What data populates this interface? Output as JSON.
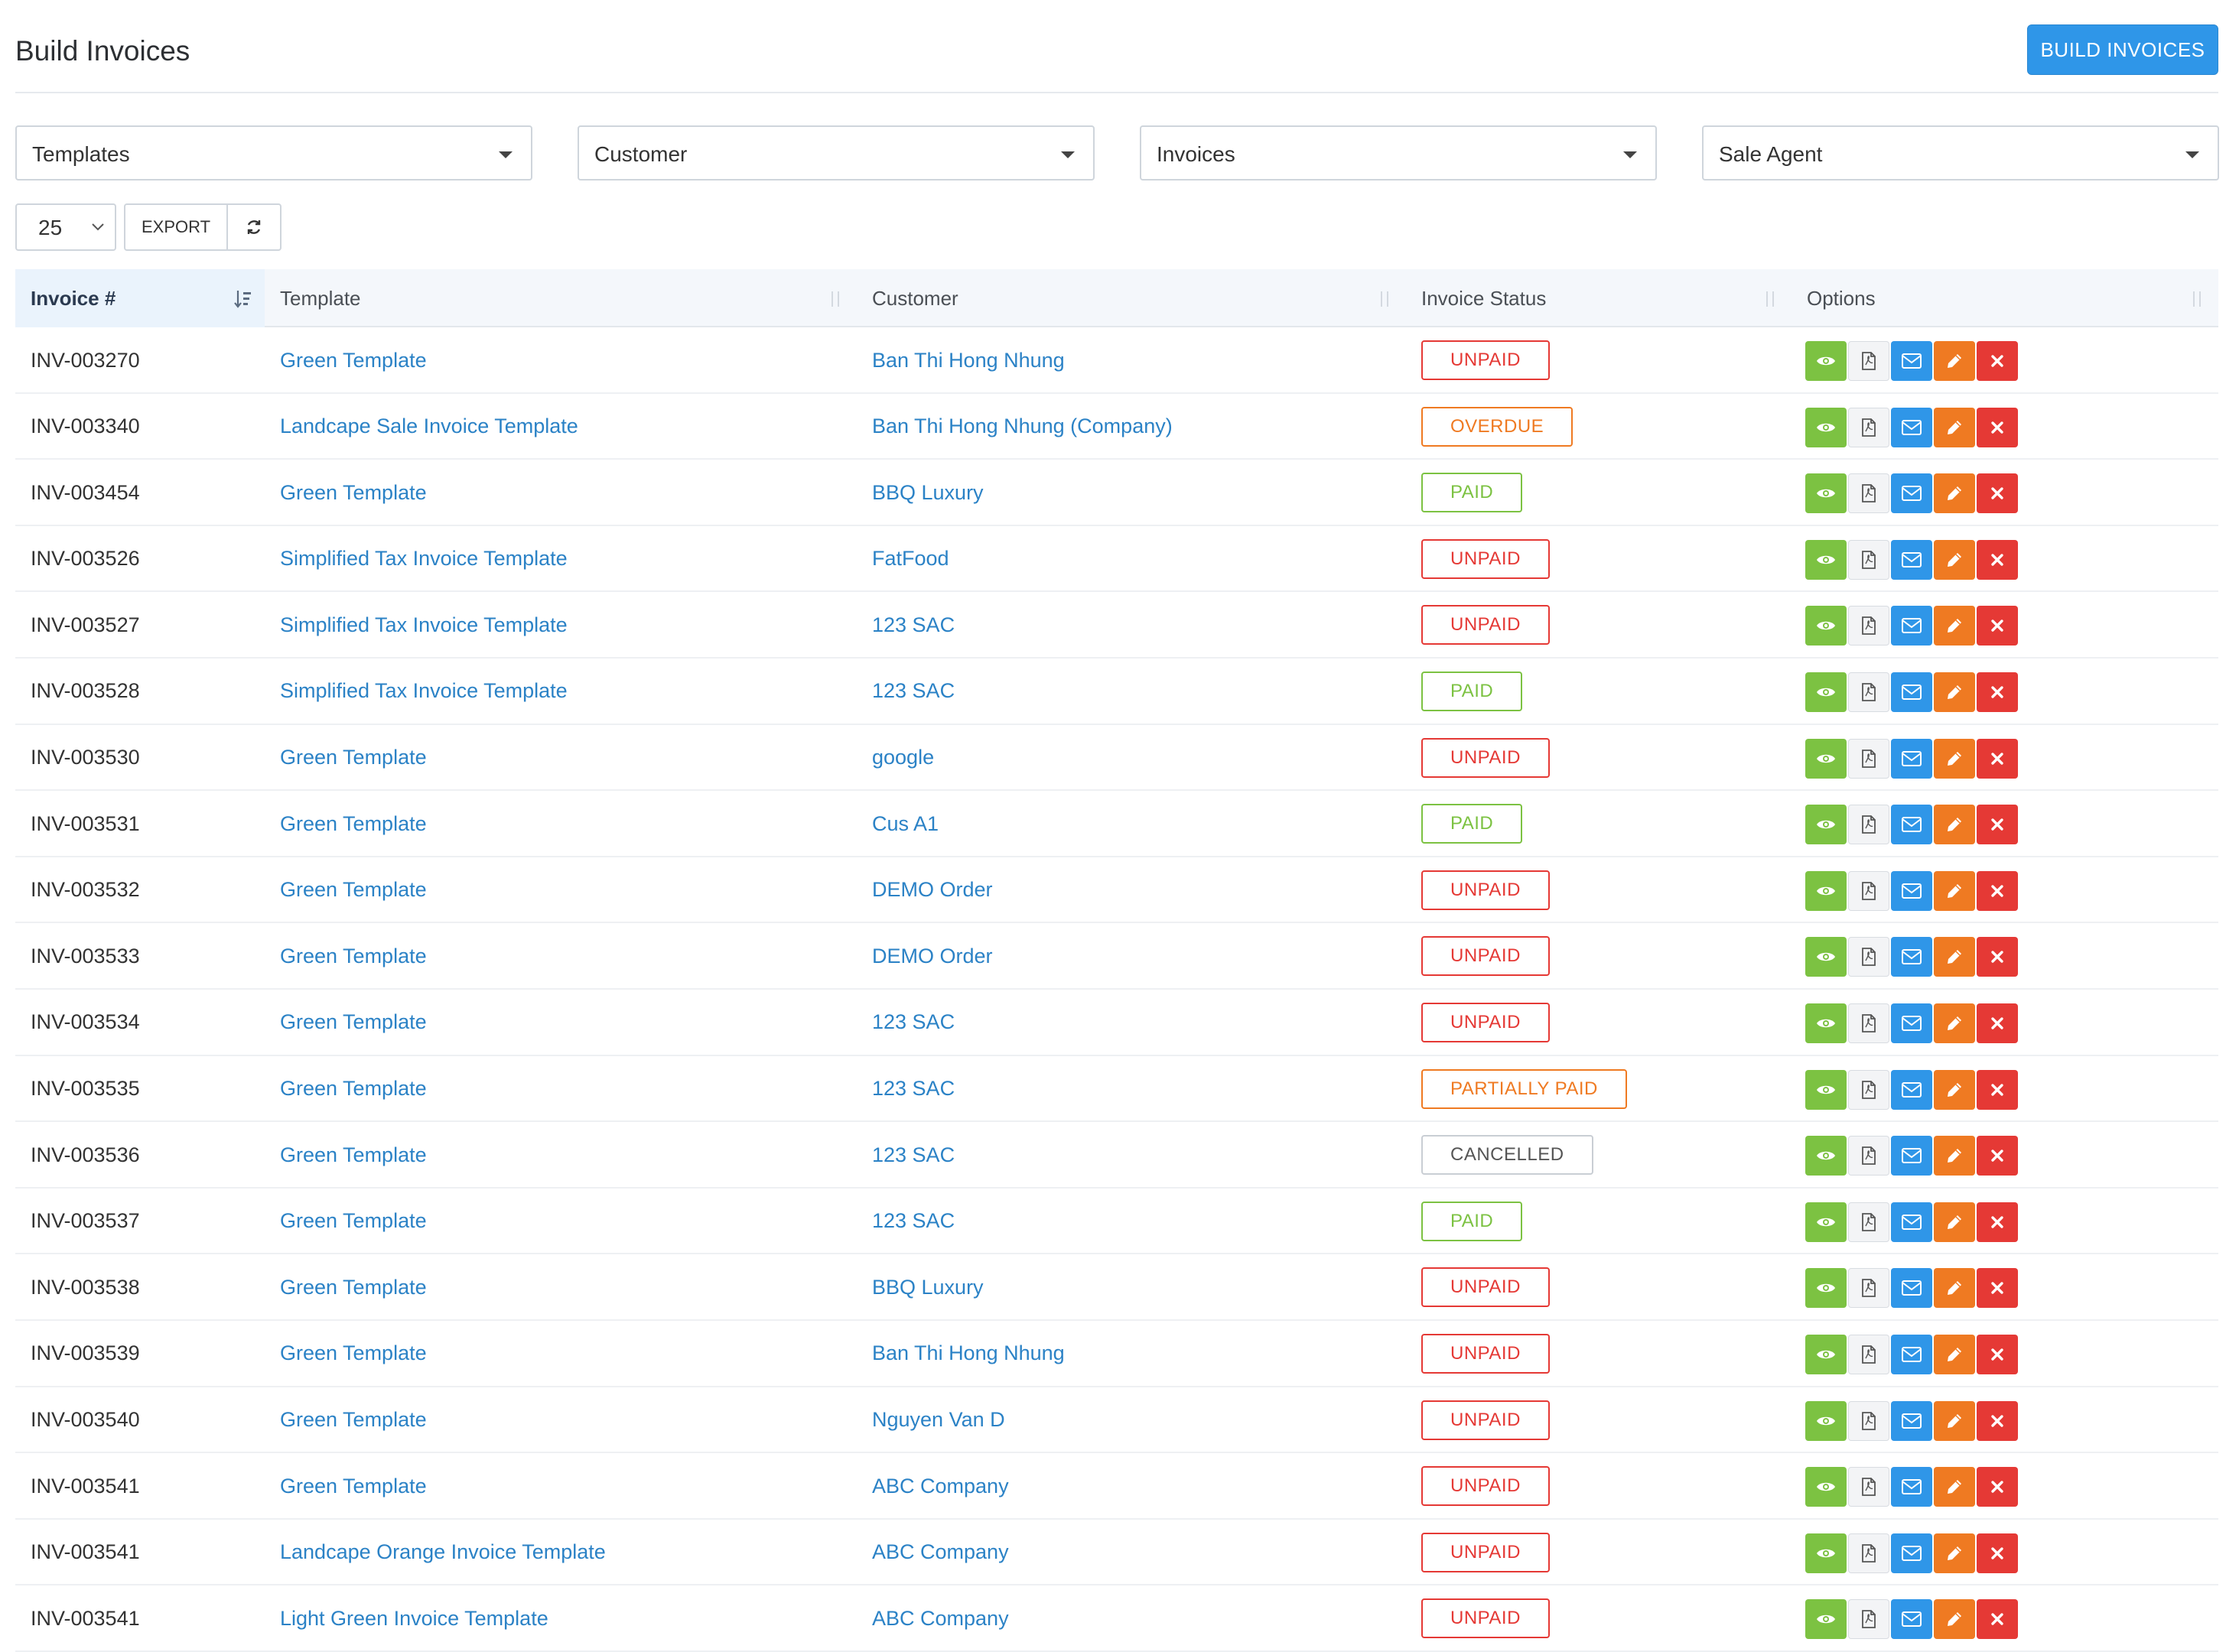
{
  "header": {
    "title": "Build Invoices",
    "build_button": "BUILD INVOICES"
  },
  "filters": [
    {
      "label": "Templates"
    },
    {
      "label": "Customer"
    },
    {
      "label": "Invoices"
    },
    {
      "label": "Sale Agent"
    }
  ],
  "toolbar": {
    "page_length": "25",
    "export_label": "EXPORT"
  },
  "table": {
    "columns": [
      "Invoice #",
      "Template",
      "Customer",
      "Invoice Status",
      "Options"
    ],
    "rows": [
      {
        "invoice": "INV-003270",
        "template": "Green Template",
        "customer": "Ban Thi Hong Nhung",
        "status": "UNPAID",
        "status_type": "unpaid"
      },
      {
        "invoice": "INV-003340",
        "template": "Landcape Sale Invoice Template",
        "customer": "Ban Thi Hong Nhung (Company)",
        "status": "OVERDUE",
        "status_type": "overdue"
      },
      {
        "invoice": "INV-003454",
        "template": "Green Template",
        "customer": "BBQ Luxury",
        "status": "PAID",
        "status_type": "paid"
      },
      {
        "invoice": "INV-003526",
        "template": "Simplified Tax Invoice Template",
        "customer": "FatFood",
        "status": "UNPAID",
        "status_type": "unpaid"
      },
      {
        "invoice": "INV-003527",
        "template": "Simplified Tax Invoice Template",
        "customer": "123 SAC",
        "status": "UNPAID",
        "status_type": "unpaid"
      },
      {
        "invoice": "INV-003528",
        "template": "Simplified Tax Invoice Template",
        "customer": "123 SAC",
        "status": "PAID",
        "status_type": "paid"
      },
      {
        "invoice": "INV-003530",
        "template": "Green Template",
        "customer": "google",
        "status": "UNPAID",
        "status_type": "unpaid"
      },
      {
        "invoice": "INV-003531",
        "template": "Green Template",
        "customer": "Cus A1",
        "status": "PAID",
        "status_type": "paid"
      },
      {
        "invoice": "INV-003532",
        "template": "Green Template",
        "customer": "DEMO Order",
        "status": "UNPAID",
        "status_type": "unpaid"
      },
      {
        "invoice": "INV-003533",
        "template": "Green Template",
        "customer": "DEMO Order",
        "status": "UNPAID",
        "status_type": "unpaid"
      },
      {
        "invoice": "INV-003534",
        "template": "Green Template",
        "customer": "123 SAC",
        "status": "UNPAID",
        "status_type": "unpaid"
      },
      {
        "invoice": "INV-003535",
        "template": "Green Template",
        "customer": "123 SAC",
        "status": "PARTIALLY PAID",
        "status_type": "partial"
      },
      {
        "invoice": "INV-003536",
        "template": "Green Template",
        "customer": "123 SAC",
        "status": "CANCELLED",
        "status_type": "cancelled"
      },
      {
        "invoice": "INV-003537",
        "template": "Green Template",
        "customer": "123 SAC",
        "status": "PAID",
        "status_type": "paid"
      },
      {
        "invoice": "INV-003538",
        "template": "Green Template",
        "customer": "BBQ Luxury",
        "status": "UNPAID",
        "status_type": "unpaid"
      },
      {
        "invoice": "INV-003539",
        "template": "Green Template",
        "customer": "Ban Thi Hong Nhung",
        "status": "UNPAID",
        "status_type": "unpaid"
      },
      {
        "invoice": "INV-003540",
        "template": "Green Template",
        "customer": "Nguyen Van D",
        "status": "UNPAID",
        "status_type": "unpaid"
      },
      {
        "invoice": "INV-003541",
        "template": "Green Template",
        "customer": "ABC Company",
        "status": "UNPAID",
        "status_type": "unpaid"
      },
      {
        "invoice": "INV-003541",
        "template": "Landcape Orange Invoice Template",
        "customer": "ABC Company",
        "status": "UNPAID",
        "status_type": "unpaid"
      },
      {
        "invoice": "INV-003541",
        "template": "Light Green Invoice Template",
        "customer": "ABC Company",
        "status": "UNPAID",
        "status_type": "unpaid"
      }
    ],
    "row_actions": [
      "eye-icon",
      "pdf-icon",
      "mail-icon",
      "pencil-icon",
      "close-icon"
    ]
  },
  "colors": {
    "primary": "#2f96e8",
    "link": "#2b82c6",
    "paid": "#7cc242",
    "unpaid": "#e53935",
    "overdue": "#ef7a22"
  }
}
